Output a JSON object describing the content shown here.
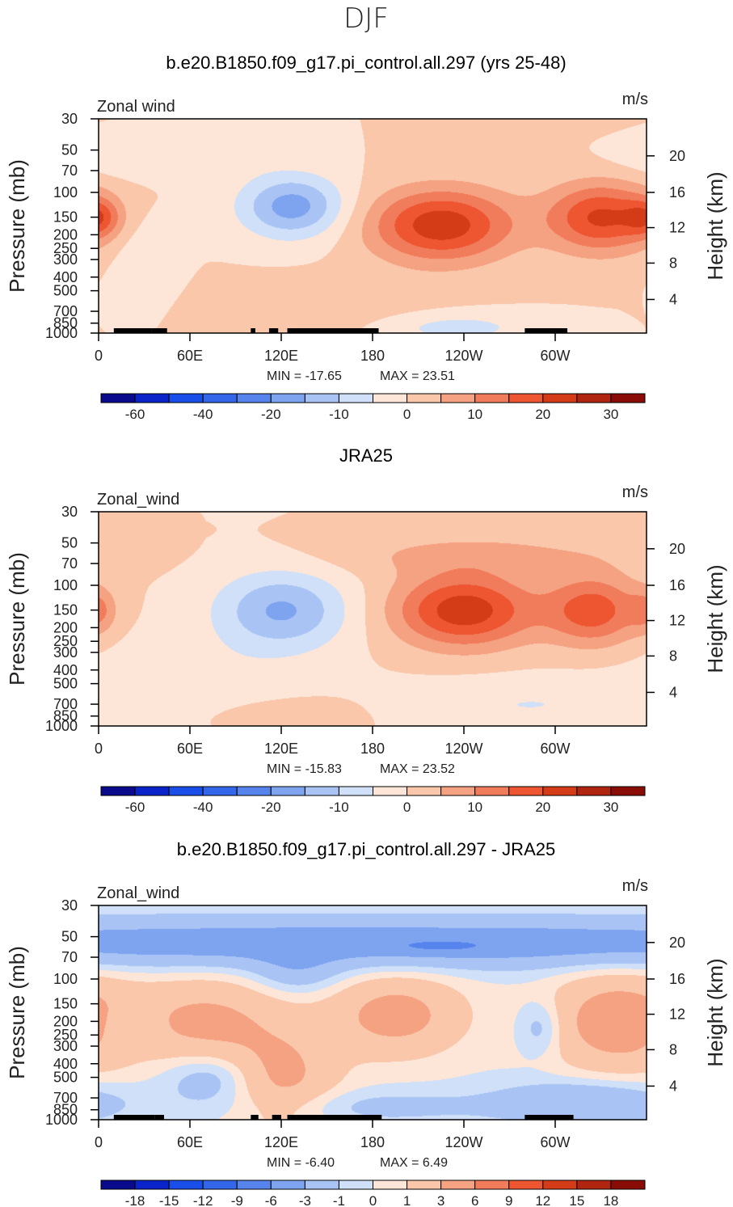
{
  "figure": {
    "season": "DJF"
  },
  "chart_data": [
    {
      "type": "heatmap",
      "title": "b.e20.B1850.f09_g17.pi_control.all.297 (yrs 25-48)",
      "left_label": "Zonal wind",
      "units": "m/s",
      "ylabel": "Pressure (mb)",
      "right_label": "Height (km)",
      "x_ticks": [
        "0",
        "60E",
        "120E",
        "180",
        "120W",
        "60W"
      ],
      "x_tick_lon": [
        0,
        60,
        120,
        180,
        240,
        300
      ],
      "xlim": [
        0,
        360
      ],
      "y_ticks": [
        "30",
        "50",
        "70",
        "100",
        "150",
        "200",
        "250",
        "300",
        "400",
        "500",
        "700",
        "850",
        "1000"
      ],
      "y_tick_p": [
        30,
        50,
        70,
        100,
        150,
        200,
        250,
        300,
        400,
        500,
        700,
        850,
        1000
      ],
      "ylim": [
        1000,
        30
      ],
      "y_scale": "log",
      "right_ticks": [
        "20",
        "16",
        "12",
        "8",
        "4"
      ],
      "right_tick_p": [
        55,
        100,
        178,
        318,
        577
      ],
      "min_label": "MIN = -17.65",
      "max_label": "MAX = 23.51",
      "min": -17.65,
      "max": 23.51,
      "colorbar_levels": [
        -70,
        -60,
        -50,
        -40,
        -30,
        -20,
        -15,
        -10,
        -5,
        0,
        5,
        10,
        15,
        20,
        25,
        30,
        35
      ],
      "colorbar_labels": [
        "-60",
        "-40",
        "-20",
        "-10",
        "0",
        "10",
        "20",
        "30"
      ],
      "colors": [
        "#0a0a8c",
        "#0b24c9",
        "#1a4ee8",
        "#3466ea",
        "#5684ec",
        "#7ea4f0",
        "#a9c4f4",
        "#cfe0f8",
        "#fde6d7",
        "#fac7ab",
        "#f5a282",
        "#f17c5b",
        "#ed5631",
        "#d43b17",
        "#b02510",
        "#8a0c07"
      ],
      "features": [
        {
          "lon": 0,
          "p": 150,
          "sx": 10,
          "sy": 0.22,
          "a": 12
        },
        {
          "lon": 127,
          "p": 125,
          "sx": 24,
          "sy": 0.36,
          "a": -17.6
        },
        {
          "lon": 225,
          "p": 170,
          "sx": 33,
          "sy": 0.42,
          "a": 23.5
        },
        {
          "lon": 330,
          "p": 150,
          "sx": 25,
          "sy": 0.4,
          "a": 21
        },
        {
          "lon": 40,
          "p": 60,
          "sx": 40,
          "sy": 0.18,
          "a": -5
        },
        {
          "lon": 30,
          "p": 320,
          "sx": 14,
          "sy": 0.5,
          "a": -4
        },
        {
          "lon": 160,
          "p": 700,
          "sx": 60,
          "sy": 0.35,
          "a": 4
        },
        {
          "lon": 230,
          "p": 900,
          "sx": 40,
          "sy": 0.2,
          "a": -8
        }
      ],
      "terrain": [
        [
          10,
          35
        ],
        [
          35,
          45
        ],
        [
          100,
          103
        ],
        [
          112,
          118
        ],
        [
          124,
          184
        ],
        [
          280,
          308
        ]
      ]
    },
    {
      "type": "heatmap",
      "title": "JRA25",
      "left_label": "Zonal_wind",
      "units": "m/s",
      "ylabel": "Pressure (mb)",
      "right_label": "Height (km)",
      "x_ticks": [
        "0",
        "60E",
        "120E",
        "180",
        "120W",
        "60W"
      ],
      "x_tick_lon": [
        0,
        60,
        120,
        180,
        240,
        300
      ],
      "xlim": [
        0,
        360
      ],
      "y_ticks": [
        "30",
        "50",
        "70",
        "100",
        "150",
        "200",
        "250",
        "300",
        "400",
        "500",
        "700",
        "850",
        "1000"
      ],
      "y_tick_p": [
        30,
        50,
        70,
        100,
        150,
        200,
        250,
        300,
        400,
        500,
        700,
        850,
        1000
      ],
      "ylim": [
        1000,
        30
      ],
      "y_scale": "log",
      "right_ticks": [
        "20",
        "16",
        "12",
        "8",
        "4"
      ],
      "right_tick_p": [
        55,
        100,
        178,
        318,
        577
      ],
      "min_label": "MIN = -15.83",
      "max_label": "MAX = 23.52",
      "min": -15.83,
      "max": 23.52,
      "colorbar_levels": [
        -70,
        -60,
        -50,
        -40,
        -30,
        -20,
        -15,
        -10,
        -5,
        0,
        5,
        10,
        15,
        20,
        25,
        30,
        35
      ],
      "colorbar_labels": [
        "-60",
        "-40",
        "-20",
        "-10",
        "0",
        "10",
        "20",
        "30"
      ],
      "colors": [
        "#0a0a8c",
        "#0b24c9",
        "#1a4ee8",
        "#3466ea",
        "#5684ec",
        "#7ea4f0",
        "#a9c4f4",
        "#cfe0f8",
        "#fde6d7",
        "#fac7ab",
        "#f5a282",
        "#f17c5b",
        "#ed5631",
        "#d43b17",
        "#b02510",
        "#8a0c07"
      ],
      "features": [
        {
          "lon": 0,
          "p": 150,
          "sx": 8,
          "sy": 0.25,
          "a": 8
        },
        {
          "lon": 120,
          "p": 150,
          "sx": 30,
          "sy": 0.45,
          "a": -15.8
        },
        {
          "lon": 240,
          "p": 150,
          "sx": 32,
          "sy": 0.42,
          "a": 23.5
        },
        {
          "lon": 325,
          "p": 150,
          "sx": 22,
          "sy": 0.4,
          "a": 18
        },
        {
          "lon": 250,
          "p": 60,
          "sx": 70,
          "sy": 0.25,
          "a": 6
        },
        {
          "lon": 60,
          "p": 500,
          "sx": 50,
          "sy": 0.5,
          "a": -4
        },
        {
          "lon": 110,
          "p": 800,
          "sx": 50,
          "sy": 0.25,
          "a": 3
        },
        {
          "lon": 280,
          "p": 700,
          "sx": 60,
          "sy": 0.3,
          "a": -5
        }
      ],
      "terrain": []
    },
    {
      "type": "heatmap",
      "title": "b.e20.B1850.f09_g17.pi_control.all.297 - JRA25",
      "left_label": "Zonal_wind",
      "units": "m/s",
      "ylabel": "Pressure (mb)",
      "right_label": "Height (km)",
      "x_ticks": [
        "0",
        "60E",
        "120E",
        "180",
        "120W",
        "60W"
      ],
      "x_tick_lon": [
        0,
        60,
        120,
        180,
        240,
        300
      ],
      "xlim": [
        0,
        360
      ],
      "y_ticks": [
        "30",
        "50",
        "70",
        "100",
        "150",
        "200",
        "250",
        "300",
        "400",
        "500",
        "700",
        "850",
        "1000"
      ],
      "y_tick_p": [
        30,
        50,
        70,
        100,
        150,
        200,
        250,
        300,
        400,
        500,
        700,
        850,
        1000
      ],
      "ylim": [
        1000,
        30
      ],
      "y_scale": "log",
      "right_ticks": [
        "20",
        "16",
        "12",
        "8",
        "4"
      ],
      "right_tick_p": [
        55,
        100,
        178,
        318,
        577
      ],
      "min_label": "MIN = -6.40",
      "max_label": "MAX = 6.49",
      "min": -6.4,
      "max": 6.49,
      "colorbar_levels": [
        -21,
        -18,
        -15,
        -12,
        -9,
        -6,
        -3,
        -1,
        0,
        1,
        3,
        6,
        9,
        12,
        15,
        18,
        21
      ],
      "colorbar_labels": [
        "-18",
        "-15",
        "-12",
        "-9",
        "-6",
        "-3",
        "-1",
        "0",
        "1",
        "3",
        "6",
        "9",
        "12",
        "15",
        "18"
      ],
      "colors": [
        "#0a0a8c",
        "#0b24c9",
        "#1a4ee8",
        "#3466ea",
        "#5684ec",
        "#7ea4f0",
        "#a9c4f4",
        "#cfe0f8",
        "#fde6d7",
        "#fac7ab",
        "#f5a282",
        "#f17c5b",
        "#ed5631",
        "#d43b17",
        "#b02510",
        "#8a0c07"
      ],
      "features": [
        {
          "lon": 180,
          "p": 55,
          "sx": 400,
          "sy": 0.28,
          "a": -4.5
        },
        {
          "lon": 225,
          "p": 58,
          "sx": 25,
          "sy": 0.08,
          "a": -2.5
        },
        {
          "lon": 130,
          "p": 90,
          "sx": 20,
          "sy": 0.25,
          "a": -2
        },
        {
          "lon": 70,
          "p": 200,
          "sx": 35,
          "sy": 0.5,
          "a": 3.5
        },
        {
          "lon": 195,
          "p": 180,
          "sx": 30,
          "sy": 0.45,
          "a": 4
        },
        {
          "lon": 340,
          "p": 200,
          "sx": 30,
          "sy": 0.55,
          "a": 4.5
        },
        {
          "lon": 120,
          "p": 500,
          "sx": 25,
          "sy": 0.55,
          "a": 3.5
        },
        {
          "lon": 75,
          "p": 500,
          "sx": 22,
          "sy": 0.3,
          "a": -2.5
        },
        {
          "lon": 20,
          "p": 220,
          "sx": 12,
          "sy": 0.25,
          "a": -2
        },
        {
          "lon": 290,
          "p": 220,
          "sx": 10,
          "sy": 0.3,
          "a": -2.2
        },
        {
          "lon": 320,
          "p": 750,
          "sx": 40,
          "sy": 0.25,
          "a": -3
        },
        {
          "lon": 180,
          "p": 800,
          "sx": 60,
          "sy": 0.2,
          "a": -1.5
        }
      ],
      "terrain": [
        [
          10,
          37
        ],
        [
          37,
          43
        ],
        [
          100,
          105
        ],
        [
          114,
          120
        ],
        [
          124,
          186
        ],
        [
          280,
          312
        ]
      ]
    }
  ]
}
